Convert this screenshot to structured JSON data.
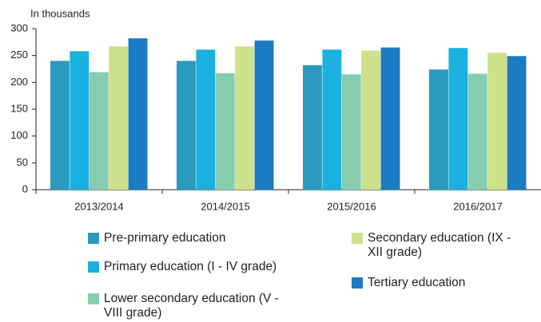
{
  "chart_data": {
    "type": "bar",
    "y_label": "In thousands",
    "categories": [
      "2013/2014",
      "2014/2015",
      "2015/2016",
      "2016/2017"
    ],
    "series": [
      {
        "name": "Pre-primary education",
        "color": "#2a9bbf",
        "values": [
          240,
          240,
          232,
          224
        ]
      },
      {
        "name": "Primary education (I - IV grade)",
        "color": "#1ab0e0",
        "values": [
          258,
          261,
          261,
          264
        ]
      },
      {
        "name": "Lower secondary education (V - VIII grade)",
        "color": "#86cdb0",
        "values": [
          219,
          217,
          215,
          216
        ]
      },
      {
        "name": "Secondary education (IX - XII grade)",
        "color": "#cde08a",
        "values": [
          267,
          267,
          259,
          255
        ]
      },
      {
        "name": "Tertiary education",
        "color": "#1a7cc2",
        "values": [
          282,
          278,
          265,
          249
        ]
      }
    ],
    "ylim": [
      0,
      300
    ],
    "yticks": [
      0,
      50,
      100,
      150,
      200,
      250,
      300
    ]
  }
}
